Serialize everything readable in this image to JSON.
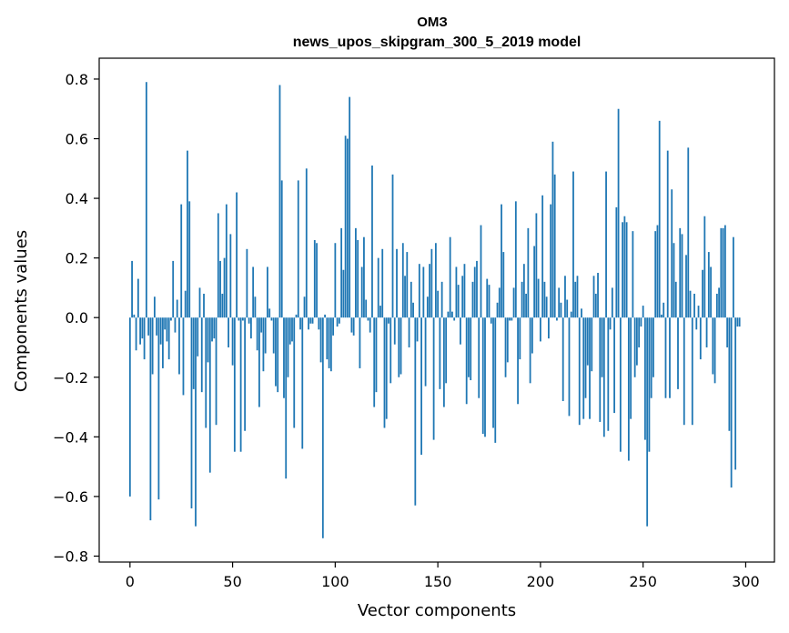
{
  "chart_data": {
    "type": "bar",
    "title": "ОМЗ",
    "subtitle": "news_upos_skipgram_300_5_2019 model",
    "xlabel": "Vector components",
    "ylabel": "Components values",
    "xlim": [
      -15,
      314
    ],
    "ylim": [
      -0.82,
      0.87
    ],
    "x_ticks": [
      0,
      50,
      100,
      150,
      200,
      250,
      300
    ],
    "x_tick_labels": [
      "0",
      "50",
      "100",
      "150",
      "200",
      "250",
      "300"
    ],
    "y_ticks": [
      -0.8,
      -0.6,
      -0.4,
      -0.2,
      0.0,
      0.2,
      0.4,
      0.6,
      0.8
    ],
    "y_tick_labels": [
      "−0.8",
      "−0.6",
      "−0.4",
      "−0.2",
      "0.0",
      "0.2",
      "0.4",
      "0.6",
      "0.8"
    ],
    "grid": false,
    "bar_color": "#1f77b4",
    "values": [
      -0.6,
      0.19,
      0.01,
      -0.11,
      0.13,
      -0.09,
      -0.07,
      -0.14,
      0.79,
      -0.06,
      -0.68,
      -0.19,
      0.07,
      -0.06,
      -0.61,
      -0.09,
      -0.17,
      -0.04,
      -0.08,
      -0.14,
      -0.01,
      0.19,
      -0.05,
      0.06,
      -0.19,
      0.38,
      -0.26,
      0.09,
      0.56,
      0.39,
      -0.64,
      -0.24,
      -0.7,
      -0.13,
      0.1,
      -0.25,
      0.08,
      -0.37,
      -0.15,
      -0.52,
      -0.08,
      -0.07,
      -0.36,
      0.35,
      0.19,
      0.08,
      0.2,
      0.38,
      -0.1,
      0.28,
      -0.16,
      -0.45,
      0.42,
      -0.01,
      -0.45,
      -0.01,
      -0.38,
      0.23,
      -0.02,
      -0.07,
      0.17,
      0.07,
      -0.11,
      -0.3,
      -0.05,
      -0.18,
      -0.12,
      0.17,
      0.03,
      -0.01,
      -0.12,
      -0.23,
      -0.25,
      0.78,
      0.46,
      -0.27,
      -0.54,
      -0.2,
      -0.09,
      -0.08,
      -0.37,
      0.01,
      0.46,
      -0.04,
      -0.44,
      0.07,
      0.5,
      -0.04,
      -0.02,
      -0.02,
      0.26,
      0.25,
      -0.04,
      -0.15,
      -0.74,
      0.01,
      -0.14,
      -0.17,
      -0.18,
      -0.06,
      0.25,
      -0.03,
      -0.02,
      0.3,
      0.16,
      0.61,
      0.6,
      0.74,
      -0.05,
      -0.06,
      0.3,
      0.26,
      -0.17,
      0.17,
      0.27,
      0.06,
      -0.01,
      -0.05,
      0.51,
      -0.3,
      -0.25,
      0.2,
      0.04,
      0.23,
      -0.37,
      -0.34,
      -0.02,
      -0.22,
      0.48,
      -0.09,
      0.23,
      -0.2,
      -0.19,
      0.25,
      0.14,
      0.22,
      -0.1,
      0.12,
      0.05,
      -0.63,
      -0.08,
      0.18,
      -0.46,
      0.17,
      -0.23,
      0.07,
      0.18,
      0.23,
      -0.41,
      0.25,
      0.09,
      -0.24,
      0.12,
      -0.3,
      -0.22,
      0.02,
      0.27,
      0.02,
      -0.01,
      0.17,
      0.11,
      -0.09,
      0.14,
      0.18,
      -0.29,
      -0.2,
      -0.21,
      0.12,
      0.17,
      0.19,
      -0.27,
      0.31,
      -0.39,
      -0.4,
      0.13,
      0.11,
      -0.02,
      -0.37,
      -0.42,
      0.05,
      0.1,
      0.38,
      0.22,
      -0.2,
      -0.15,
      -0.01,
      -0.01,
      0.1,
      0.39,
      -0.29,
      -0.14,
      0.12,
      0.18,
      0.08,
      0.3,
      -0.22,
      -0.12,
      0.24,
      0.35,
      0.13,
      -0.08,
      0.41,
      0.12,
      0.07,
      -0.07,
      0.38,
      0.59,
      0.48,
      -0.01,
      0.1,
      0.05,
      -0.28,
      0.14,
      0.06,
      -0.33,
      0.02,
      0.49,
      0.12,
      0.14,
      -0.36,
      0.03,
      -0.34,
      -0.27,
      -0.16,
      -0.34,
      -0.18,
      0.14,
      0.08,
      0.15,
      -0.35,
      -0.2,
      -0.4,
      0.49,
      -0.38,
      -0.04,
      0.1,
      -0.32,
      0.37,
      0.7,
      -0.45,
      0.32,
      0.34,
      0.32,
      -0.48,
      -0.34,
      0.29,
      -0.2,
      -0.16,
      -0.1,
      -0.03,
      0.04,
      -0.41,
      -0.7,
      -0.45,
      -0.27,
      -0.2,
      0.29,
      0.31,
      0.66,
      0.01,
      0.05,
      -0.27,
      0.56,
      -0.27,
      0.43,
      0.25,
      0.12,
      -0.24,
      0.3,
      0.28,
      -0.36,
      0.21,
      0.57,
      0.09,
      -0.36,
      0.08,
      -0.04,
      0.04,
      -0.14,
      0.16,
      0.34,
      -0.1,
      0.22,
      0.17,
      -0.19,
      -0.22,
      0.08,
      0.1,
      0.3,
      0.3,
      0.31,
      -0.1,
      -0.38,
      -0.57,
      0.27,
      -0.51,
      -0.03,
      -0.03
    ]
  }
}
